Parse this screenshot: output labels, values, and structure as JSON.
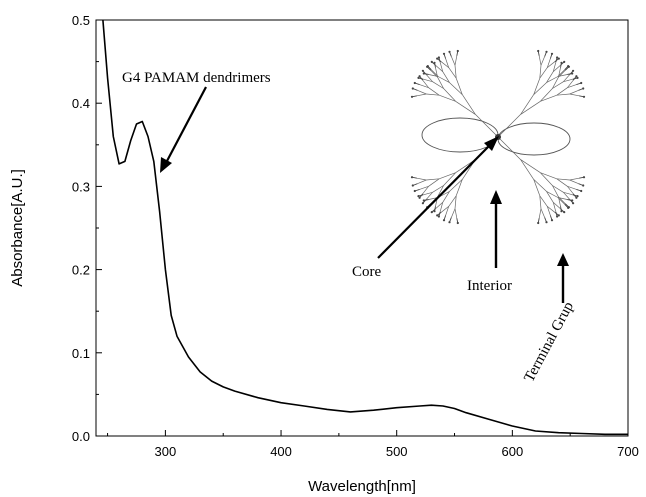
{
  "chart_data": {
    "type": "line",
    "title": "",
    "xlabel": "Wavelength[nm]",
    "ylabel": "Absorbance[A.U.]",
    "xlim": [
      240,
      700
    ],
    "ylim": [
      0.0,
      0.5
    ],
    "x_ticks": [
      300,
      400,
      500,
      600,
      700
    ],
    "x_tick_labels": [
      "300",
      "400",
      "500",
      "600",
      "700"
    ],
    "y_ticks": [
      0.0,
      0.1,
      0.2,
      0.3,
      0.4,
      0.5
    ],
    "y_tick_labels": [
      "0.0",
      "0.1",
      "0.2",
      "0.3",
      "0.4",
      "0.5"
    ],
    "grid": false,
    "legend": null,
    "series": [
      {
        "color": "#000000",
        "x": [
          246,
          250,
          255,
          260,
          265,
          270,
          275,
          280,
          285,
          290,
          295,
          300,
          305,
          310,
          320,
          330,
          340,
          350,
          360,
          380,
          400,
          420,
          440,
          460,
          480,
          500,
          520,
          530,
          540,
          550,
          560,
          580,
          600,
          620,
          640,
          660,
          680,
          700
        ],
        "y": [
          0.5,
          0.43,
          0.36,
          0.327,
          0.33,
          0.355,
          0.375,
          0.378,
          0.36,
          0.33,
          0.27,
          0.2,
          0.145,
          0.12,
          0.095,
          0.077,
          0.066,
          0.059,
          0.054,
          0.046,
          0.04,
          0.036,
          0.032,
          0.029,
          0.031,
          0.034,
          0.036,
          0.037,
          0.036,
          0.033,
          0.028,
          0.02,
          0.012,
          0.006,
          0.004,
          0.003,
          0.002,
          0.002
        ]
      }
    ],
    "annotations": [
      {
        "text": "G4 PAMAM dendrimers",
        "arrow_to": [
          295,
          0.32
        ]
      },
      {
        "text": "Core"
      },
      {
        "text": "Interior"
      },
      {
        "text": "Terminal Grup"
      }
    ]
  }
}
